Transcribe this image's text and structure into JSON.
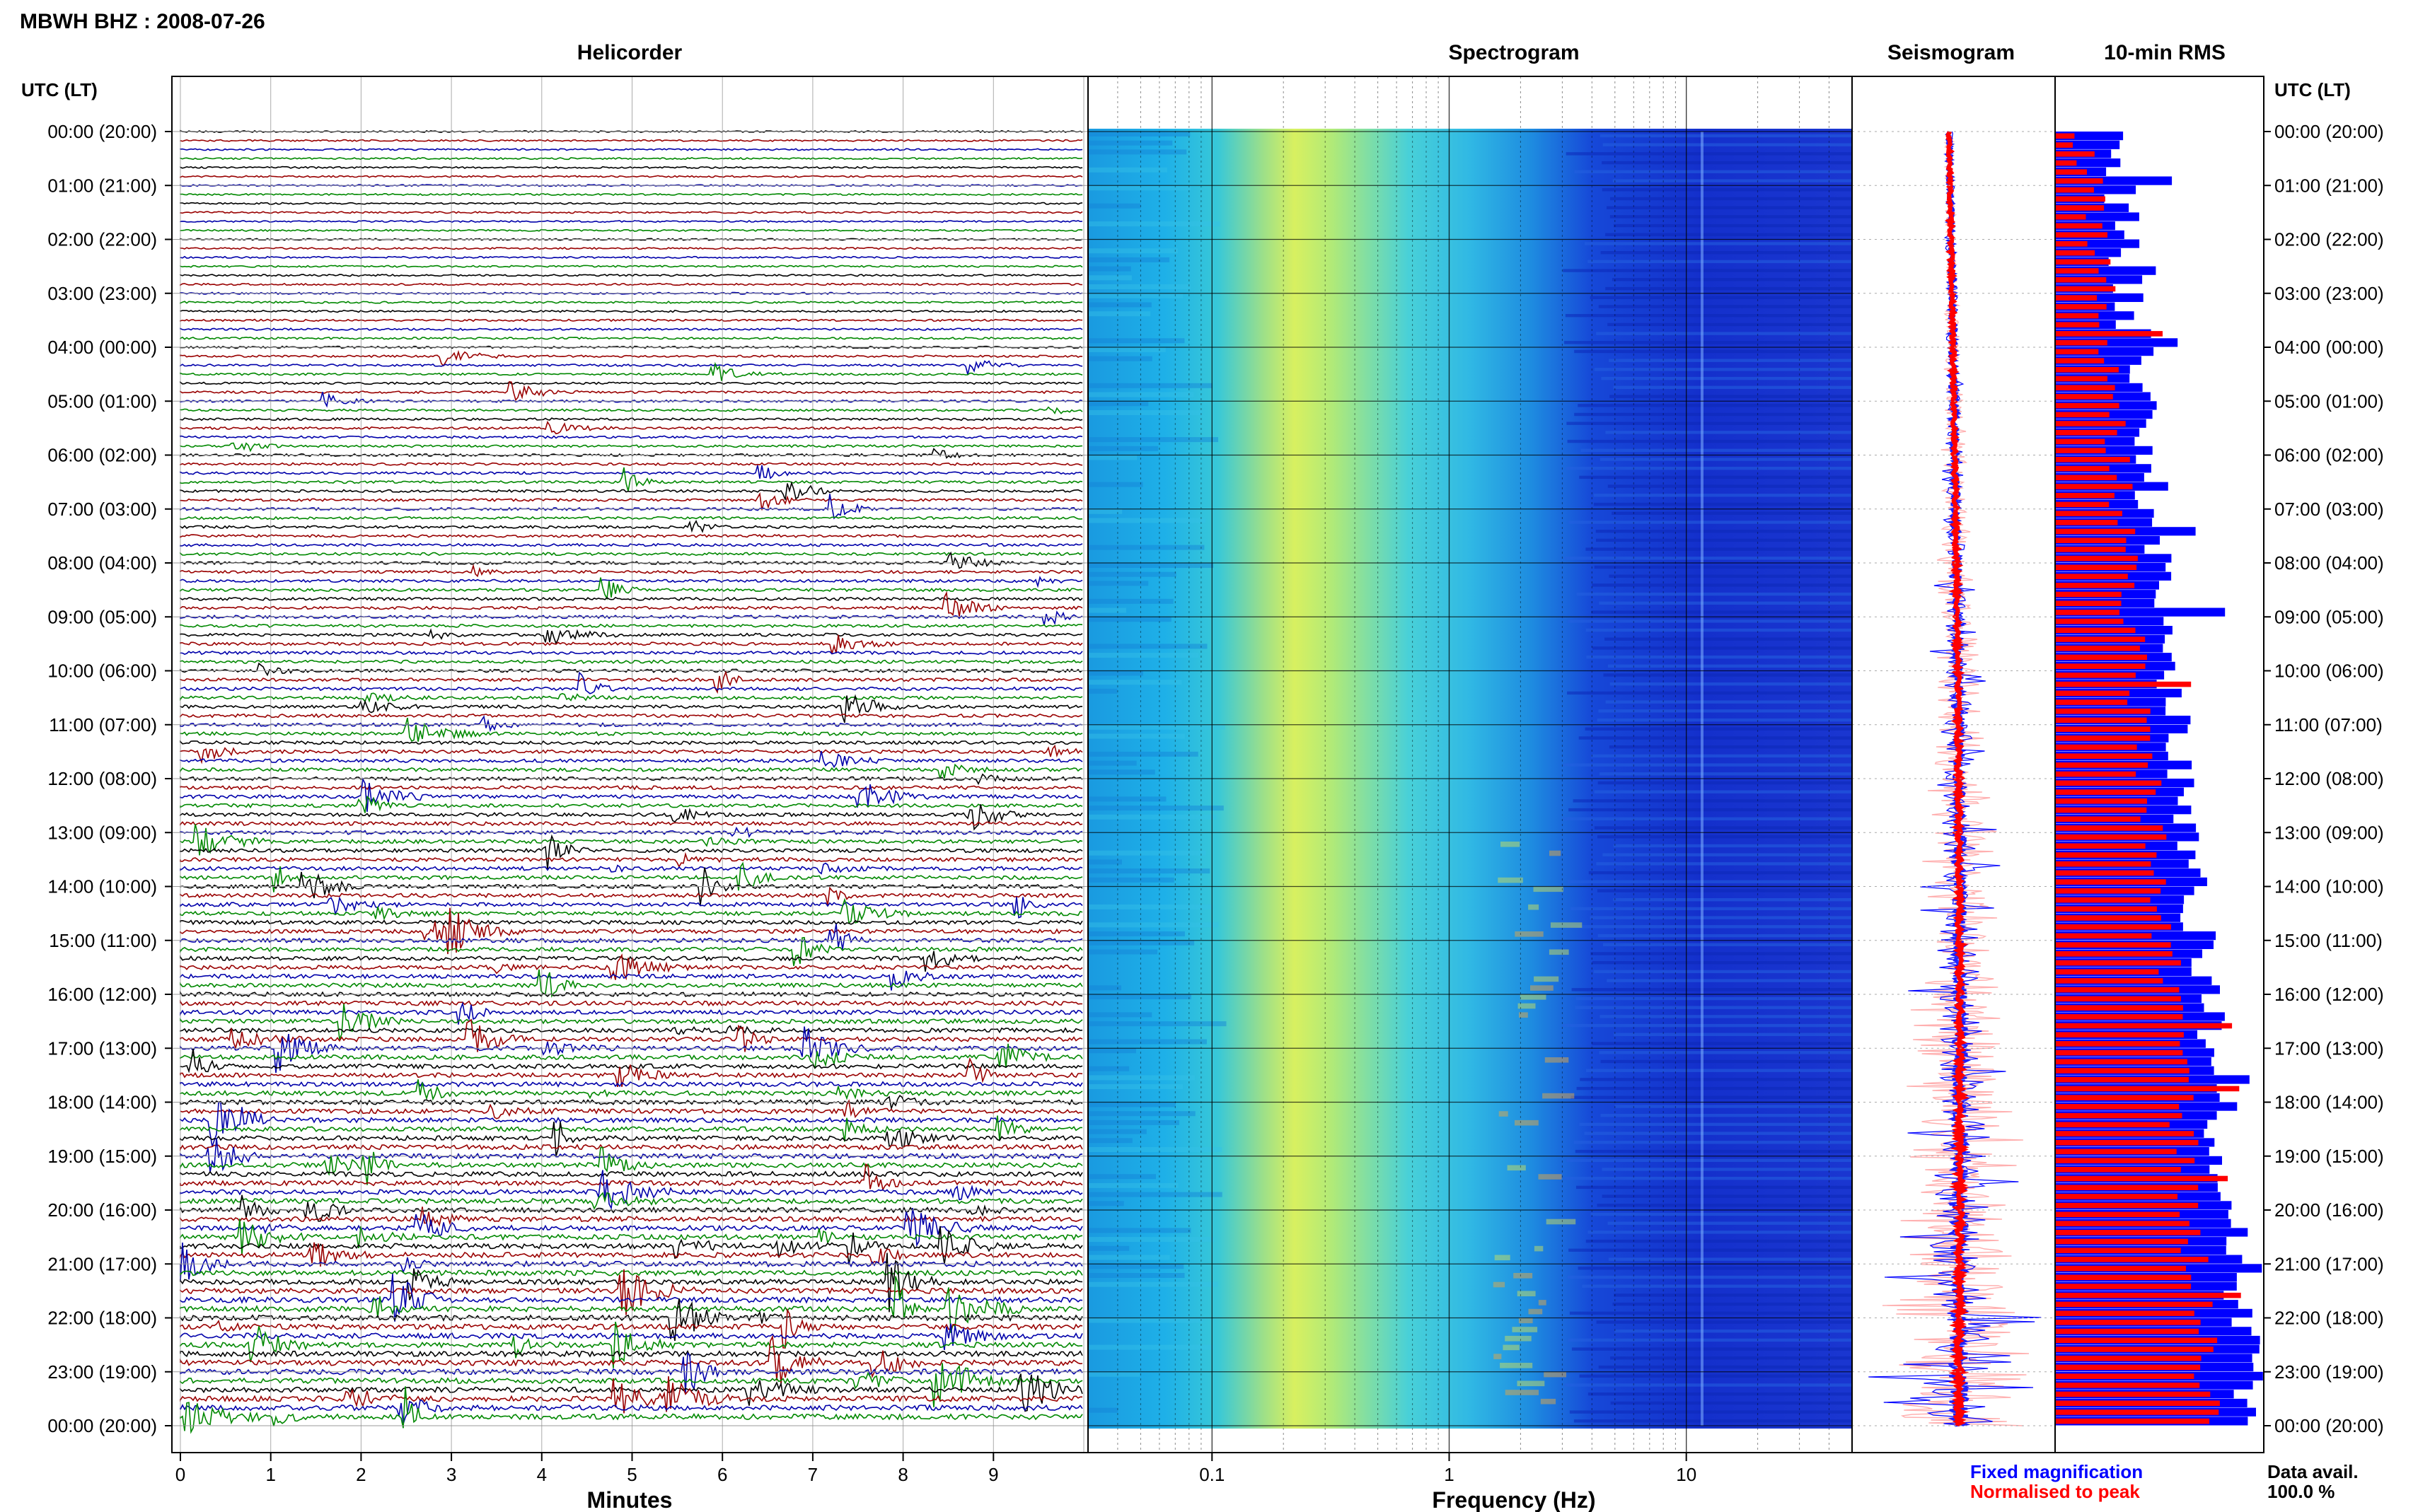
{
  "header": {
    "title": "MBWH BHZ : 2008-07-26"
  },
  "panels": {
    "helicorder": "Helicorder",
    "spectrogram": "Spectrogram",
    "seismogram": "Seismogram",
    "rms": "10-min RMS"
  },
  "axes": {
    "time_label_left": "UTC (LT)",
    "time_label_right": "UTC (LT)",
    "minutes_label": "Minutes",
    "frequency_label": "Frequency (Hz)"
  },
  "time_ticks": [
    "00:00 (20:00)",
    "01:00 (21:00)",
    "02:00 (22:00)",
    "03:00 (23:00)",
    "04:00 (00:00)",
    "05:00 (01:00)",
    "06:00 (02:00)",
    "07:00 (03:00)",
    "08:00 (04:00)",
    "09:00 (05:00)",
    "10:00 (06:00)",
    "11:00 (07:00)",
    "12:00 (08:00)",
    "13:00 (09:00)",
    "14:00 (10:00)",
    "15:00 (11:00)",
    "16:00 (12:00)",
    "17:00 (13:00)",
    "18:00 (14:00)",
    "19:00 (15:00)",
    "20:00 (16:00)",
    "21:00 (17:00)",
    "22:00 (18:00)",
    "23:00 (19:00)",
    "00:00 (20:00)"
  ],
  "minute_ticks": [
    "0",
    "1",
    "2",
    "3",
    "4",
    "5",
    "6",
    "7",
    "8",
    "9"
  ],
  "frequency_ticks": [
    "0.1",
    "1",
    "10"
  ],
  "legend": {
    "fixed": {
      "label": "Fixed magnification",
      "color": "#0000ff"
    },
    "normalised": {
      "label": "Normalised to peak",
      "color": "#ff0000"
    }
  },
  "data_availability": {
    "label": "Data avail.",
    "value": "100.0 %"
  },
  "colors": {
    "trace_cycle": [
      "#000000",
      "#990000",
      "#0000aa",
      "#008800"
    ],
    "rms_fixed": "#0000ff",
    "rms_normalised": "#ff0000"
  },
  "chart_data": [
    {
      "type": "line",
      "title": "Helicorder",
      "xlabel": "Minutes",
      "xlim": [
        0,
        10
      ],
      "rows_per_hour": 6,
      "hours": 24,
      "activity_trend": "low amplitude before 06:00 UTC, increasing to frequent large events after 14:00 UTC"
    },
    {
      "type": "heatmap",
      "title": "Spectrogram",
      "xlabel": "Frequency (Hz)",
      "xscale": "log",
      "xlim": [
        0.03,
        50
      ],
      "peak_frequency_hz": 0.3,
      "colormap": "blue-cyan-yellow"
    },
    {
      "type": "line",
      "title": "Seismogram",
      "series": [
        {
          "name": "Fixed magnification"
        },
        {
          "name": "Normalised to peak"
        }
      ]
    },
    {
      "type": "bar",
      "title": "10-min RMS",
      "orientation": "horizontal",
      "bins": 144,
      "series": [
        {
          "name": "Fixed magnification",
          "trend": "rising from ~0.28 to ~0.95 of full scale over the day"
        },
        {
          "name": "Normalised to peak",
          "trend": "rising from ~0.15 to ~0.75 of full scale over the day"
        }
      ]
    }
  ]
}
